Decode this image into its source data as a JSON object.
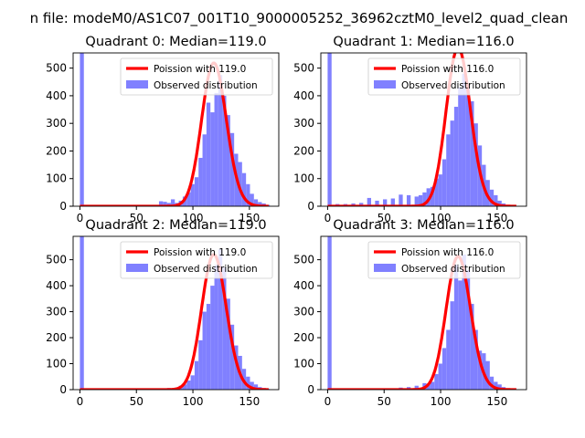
{
  "figure": {
    "suptitle": "n file: modeM0/AS1C07_001T10_9000005252_36962cztM0_level2_quad_clean"
  },
  "colors": {
    "histogram": "#8080ff",
    "poisson": "#ff0000",
    "axes": "#000000",
    "background": "#ffffff"
  },
  "chart_data": [
    {
      "type": "bar",
      "title": "Quadrant 0: Median=119.0",
      "xlim": [
        -6,
        176
      ],
      "ylim": [
        0,
        555
      ],
      "xticks": [
        0,
        50,
        100,
        150
      ],
      "yticks": [
        0,
        100,
        200,
        300,
        400,
        500
      ],
      "grid": false,
      "legend_position": "top-right",
      "series": [
        {
          "name": "Poission with 119.0",
          "type": "line",
          "mean": 119.0
        },
        {
          "name": "Observed distribution",
          "type": "hist",
          "bin_width": 3.5,
          "bins": [
            [
              0,
              1000
            ],
            [
              70,
              18
            ],
            [
              73.5,
              16
            ],
            [
              77,
              12
            ],
            [
              80.5,
              25
            ],
            [
              84,
              12
            ],
            [
              87.5,
              20
            ],
            [
              91,
              35
            ],
            [
              94.5,
              50
            ],
            [
              98,
              80
            ],
            [
              101.5,
              105
            ],
            [
              105,
              175
            ],
            [
              108.5,
              260
            ],
            [
              112,
              375
            ],
            [
              115.5,
              340
            ],
            [
              119,
              410
            ],
            [
              122.5,
              475
            ],
            [
              126,
              400
            ],
            [
              129.5,
              330
            ],
            [
              133,
              265
            ],
            [
              136.5,
              190
            ],
            [
              140,
              160
            ],
            [
              143.5,
              120
            ],
            [
              147,
              80
            ],
            [
              150.5,
              45
            ],
            [
              154,
              25
            ],
            [
              157.5,
              15
            ],
            [
              161,
              10
            ],
            [
              164.5,
              5
            ]
          ]
        }
      ]
    },
    {
      "type": "bar",
      "title": "Quadrant 1: Median=116.0",
      "xlim": [
        -6,
        176
      ],
      "ylim": [
        0,
        555
      ],
      "xticks": [
        0,
        50,
        100,
        150
      ],
      "yticks": [
        0,
        100,
        200,
        300,
        400,
        500
      ],
      "grid": false,
      "legend_position": "top-right",
      "series": [
        {
          "name": "Poission with 116.0",
          "type": "line",
          "mean": 116.0
        },
        {
          "name": "Observed distribution",
          "type": "hist",
          "bin_width": 3.5,
          "bins": [
            [
              0,
              1000
            ],
            [
              7,
              8
            ],
            [
              14,
              8
            ],
            [
              21,
              10
            ],
            [
              28,
              12
            ],
            [
              35,
              30
            ],
            [
              42,
              20
            ],
            [
              49,
              25
            ],
            [
              56,
              28
            ],
            [
              63,
              42
            ],
            [
              70,
              40
            ],
            [
              77,
              35
            ],
            [
              80.5,
              40
            ],
            [
              84,
              50
            ],
            [
              87.5,
              65
            ],
            [
              91,
              70
            ],
            [
              94.5,
              100
            ],
            [
              98,
              115
            ],
            [
              101.5,
              170
            ],
            [
              105,
              260
            ],
            [
              108.5,
              310
            ],
            [
              112,
              360
            ],
            [
              115.5,
              430
            ],
            [
              119,
              480
            ],
            [
              122.5,
              435
            ],
            [
              126,
              380
            ],
            [
              129.5,
              300
            ],
            [
              133,
              220
            ],
            [
              136.5,
              150
            ],
            [
              140,
              95
            ],
            [
              143.5,
              60
            ],
            [
              147,
              40
            ],
            [
              150.5,
              20
            ],
            [
              154,
              10
            ],
            [
              157.5,
              5
            ]
          ]
        }
      ]
    },
    {
      "type": "bar",
      "title": "Quadrant 2: Median=119.0",
      "xlim": [
        -6,
        176
      ],
      "ylim": [
        0,
        590
      ],
      "xticks": [
        0,
        50,
        100,
        150
      ],
      "yticks": [
        0,
        100,
        200,
        300,
        400,
        500
      ],
      "grid": false,
      "legend_position": "top-right",
      "series": [
        {
          "name": "Poission with 119.0",
          "type": "line",
          "mean": 119.0
        },
        {
          "name": "Observed distribution",
          "type": "hist",
          "bin_width": 3.5,
          "bins": [
            [
              0,
              1000
            ],
            [
              70,
              4
            ],
            [
              77,
              6
            ],
            [
              84,
              8
            ],
            [
              87.5,
              15
            ],
            [
              91,
              20
            ],
            [
              94.5,
              35
            ],
            [
              98,
              55
            ],
            [
              101.5,
              110
            ],
            [
              105,
              190
            ],
            [
              108.5,
              300
            ],
            [
              112,
              330
            ],
            [
              115.5,
              400
            ],
            [
              119,
              480
            ],
            [
              122.5,
              540
            ],
            [
              126,
              470
            ],
            [
              129.5,
              350
            ],
            [
              133,
              250
            ],
            [
              136.5,
              170
            ],
            [
              140,
              130
            ],
            [
              143.5,
              80
            ],
            [
              147,
              50
            ],
            [
              150.5,
              30
            ],
            [
              154,
              20
            ],
            [
              157.5,
              10
            ],
            [
              161,
              6
            ],
            [
              164.5,
              3
            ]
          ]
        }
      ]
    },
    {
      "type": "bar",
      "title": "Quadrant 3: Median=116.0",
      "xlim": [
        -6,
        176
      ],
      "ylim": [
        0,
        590
      ],
      "xticks": [
        0,
        50,
        100,
        150
      ],
      "yticks": [
        0,
        100,
        200,
        300,
        400,
        500
      ],
      "grid": false,
      "legend_position": "top-right",
      "series": [
        {
          "name": "Poission with 116.0",
          "type": "line",
          "mean": 116.0
        },
        {
          "name": "Observed distribution",
          "type": "hist",
          "bin_width": 3.5,
          "bins": [
            [
              0,
              1000
            ],
            [
              56,
              5
            ],
            [
              63,
              8
            ],
            [
              70,
              10
            ],
            [
              77,
              15
            ],
            [
              84,
              25
            ],
            [
              87.5,
              20
            ],
            [
              91,
              30
            ],
            [
              94.5,
              60
            ],
            [
              98,
              100
            ],
            [
              101.5,
              160
            ],
            [
              105,
              230
            ],
            [
              108.5,
              340
            ],
            [
              112,
              480
            ],
            [
              115.5,
              420
            ],
            [
              119,
              520
            ],
            [
              122.5,
              460
            ],
            [
              126,
              330
            ],
            [
              129.5,
              230
            ],
            [
              133,
              150
            ],
            [
              136.5,
              140
            ],
            [
              140,
              110
            ],
            [
              143.5,
              50
            ],
            [
              147,
              30
            ],
            [
              150.5,
              20
            ],
            [
              154,
              10
            ],
            [
              157.5,
              5
            ]
          ]
        }
      ]
    }
  ]
}
